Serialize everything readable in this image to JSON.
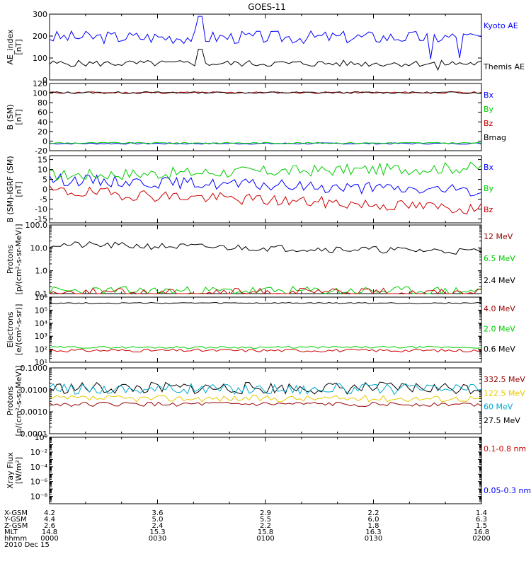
{
  "title": "GOES-11",
  "colors": {
    "black": "#000000",
    "blue": "#0000ff",
    "green": "#00cc00",
    "red": "#cc0000",
    "darkred": "#990000",
    "yellow": "#e6c800",
    "cyan": "#00aacc"
  },
  "chart_data": [
    {
      "type": "line",
      "panel": "ae",
      "ylabel": [
        "AE_index",
        "[nT]"
      ],
      "ylim": [
        0,
        300
      ],
      "ticks": [
        0,
        100,
        200,
        300
      ],
      "tick_labels": [
        "0",
        "100",
        "200",
        "300"
      ],
      "series": [
        {
          "name": "Kyoto AE",
          "color": "blue",
          "baseline": 195,
          "amp": 30,
          "seed": 3,
          "spikes": [
            [
              0.35,
              290
            ],
            [
              0.88,
              95
            ],
            [
              0.95,
              100
            ]
          ]
        },
        {
          "name": "Themis AE",
          "color": "black",
          "baseline": 75,
          "amp": 15,
          "seed": 5,
          "spikes": [
            [
              0.35,
              140
            ],
            [
              0.9,
              45
            ]
          ]
        }
      ],
      "legend_colors": [
        "blue",
        "black"
      ]
    },
    {
      "type": "line",
      "panel": "b",
      "ylabel": [
        "B (SM)",
        "[nT]"
      ],
      "ylim": [
        -20,
        120
      ],
      "ticks": [
        -20,
        0,
        20,
        40,
        60,
        80,
        100,
        120
      ],
      "tick_labels": [
        "-20",
        "0",
        "20",
        "40",
        "60",
        "80",
        "100",
        "120"
      ],
      "series": [
        {
          "name": "Bx",
          "color": "blue",
          "baseline": -5,
          "amp": 1.5,
          "seed": 7
        },
        {
          "name": "By",
          "color": "green",
          "baseline": -4,
          "amp": 1.5,
          "seed": 9
        },
        {
          "name": "Bz",
          "color": "red",
          "baseline": 101,
          "amp": 2,
          "seed": 11
        },
        {
          "name": "Bmag",
          "color": "black",
          "baseline": 101,
          "amp": 2,
          "seed": 13
        }
      ],
      "legend_colors": [
        "blue",
        "green",
        "red",
        "black"
      ]
    },
    {
      "type": "line",
      "panel": "bigrf",
      "ylabel": [
        "B (SM)-IGRF (SM)",
        "[nT]"
      ],
      "ylim": [
        -17,
        17
      ],
      "ticks": [
        -15,
        -10,
        -5,
        0,
        5,
        10,
        15
      ],
      "tick_labels": [
        "-15",
        "-10",
        "-5",
        "0",
        "5",
        "10",
        "15"
      ],
      "series": [
        {
          "name": "Bx",
          "color": "blue",
          "baseline": 5,
          "amp": 3,
          "seed": 15,
          "trend": -6
        },
        {
          "name": "By",
          "color": "green",
          "baseline": 7,
          "amp": 3,
          "seed": 17,
          "trend": 4
        },
        {
          "name": "Bz",
          "color": "red",
          "baseline": -1,
          "amp": 3,
          "seed": 19,
          "trend": -9
        }
      ],
      "legend_colors": [
        "blue",
        "green",
        "red"
      ]
    },
    {
      "type": "line",
      "panel": "protons_lo",
      "log": true,
      "ylabel": [
        "Protons",
        "[p/(cm²-s-sr-MeV)]"
      ],
      "ylim": [
        0.1,
        100
      ],
      "ticks": [
        0.1,
        1,
        10,
        100
      ],
      "tick_labels": [
        "0.1",
        "1.0",
        "10.0",
        "100.0"
      ],
      "series": [
        {
          "name": "12 MeV",
          "color": "black",
          "baseline": 14,
          "amp": 0.15,
          "seed": 21,
          "trend": -0.3
        },
        {
          "name": "6.5 MeV",
          "color": "green",
          "baseline": 0.13,
          "amp": 0.2,
          "seed": 23
        },
        {
          "name": "2.4 MeV",
          "color": "red",
          "baseline": 0.11,
          "amp": 0.2,
          "seed": 25
        }
      ],
      "legend_colors": [
        "darkred",
        "green",
        "black"
      ]
    },
    {
      "type": "line",
      "panel": "electrons",
      "log": true,
      "ylabel": [
        "Electrons",
        "[e/(cm²-s-sr)]"
      ],
      "ylim": [
        10,
        1000000
      ],
      "ticks": [
        10,
        100,
        1000,
        10000,
        100000,
        1000000
      ],
      "tick_labels": [
        "10¹",
        "10²",
        "10³",
        "10⁴",
        "10⁵",
        "10⁶"
      ],
      "series": [
        {
          "name": "4.0 MeV",
          "color": "black",
          "baseline": 350000,
          "amp": 0.05,
          "seed": 27
        },
        {
          "name": "2.0 MeV",
          "color": "green",
          "baseline": 140,
          "amp": 0.08,
          "seed": 29
        },
        {
          "name": "0.6 MeV",
          "color": "red",
          "baseline": 80,
          "amp": 0.12,
          "seed": 31
        }
      ],
      "legend_colors": [
        "darkred",
        "green",
        "black"
      ]
    },
    {
      "type": "line",
      "panel": "protons_hi",
      "log": true,
      "ylabel": [
        "Protons",
        "[p/(cm²-s-sr-MeV)]"
      ],
      "ylim": [
        0.0001,
        0.1
      ],
      "ticks": [
        0.0001,
        0.001,
        0.01,
        0.1
      ],
      "tick_labels": [
        "0.0001",
        "0.0010",
        "0.0100",
        "0.1000"
      ],
      "series": [
        {
          "name": "332.5 MeV",
          "color": "black",
          "baseline": 0.012,
          "amp": 0.28,
          "seed": 33
        },
        {
          "name": "122.5 MeV",
          "color": "cyan",
          "baseline": 0.011,
          "amp": 0.25,
          "seed": 35
        },
        {
          "name": "60 MeV",
          "color": "yellow",
          "baseline": 0.004,
          "amp": 0.15,
          "seed": 37
        },
        {
          "name": "27.5 MeV",
          "color": "darkred",
          "baseline": 0.0022,
          "amp": 0.1,
          "seed": 39
        }
      ],
      "legend_colors": [
        "darkred",
        "yellow",
        "cyan",
        "black"
      ]
    },
    {
      "type": "line",
      "panel": "xray",
      "log": true,
      "ylabel": [
        "Xray Flux",
        "[W/m²]"
      ],
      "ylim": [
        1e-09,
        1
      ],
      "ticks": [
        1e-09,
        1e-08,
        1e-07,
        1e-06,
        1e-05,
        0.0001,
        0.001,
        0.01,
        0.1,
        1
      ],
      "tick_labels": [
        "",
        "10⁻⁸",
        "",
        "10⁻⁶",
        "",
        "10⁻⁴",
        "",
        "10⁻²",
        "",
        "10⁰"
      ],
      "series": [
        {
          "name": "0.1-0.8 nm",
          "color": "red"
        },
        {
          "name": "0.05-0.3 nm",
          "color": "blue"
        }
      ],
      "legend_colors": [
        "red",
        "blue"
      ]
    }
  ],
  "legends": [
    [
      "Kyoto AE",
      "Themis AE"
    ],
    [
      "Bx",
      "By",
      "Bz",
      "Bmag"
    ],
    [
      "Bx",
      "By",
      "Bz"
    ],
    [
      "12 MeV",
      "6.5 MeV",
      "2.4 MeV"
    ],
    [
      "4.0 MeV",
      "2.0 MeV",
      "0.6 MeV"
    ],
    [
      "332.5 MeV",
      "122.5 MeV",
      "60 MeV",
      "27.5 MeV"
    ],
    [
      "0.1-0.8 nm",
      "0.05-0.3 nm"
    ]
  ],
  "footer": {
    "row_labels": [
      "X-GSM",
      "Y-GSM",
      "Z-GSM",
      "MLT",
      "hhmm",
      "2010 Dec 15"
    ],
    "columns": [
      [
        "4.2",
        "4.4",
        "2.6",
        "14.8",
        "0000"
      ],
      [
        "3.6",
        "5.0",
        "2.4",
        "15.3",
        "0030"
      ],
      [
        "2.9",
        "5.5",
        "2.2",
        "15.8",
        "0100"
      ],
      [
        "2.2",
        "6.0",
        "1.8",
        "16.3",
        "0130"
      ],
      [
        "1.4",
        "6.3",
        "1.5",
        "16.8",
        "0200"
      ]
    ]
  }
}
